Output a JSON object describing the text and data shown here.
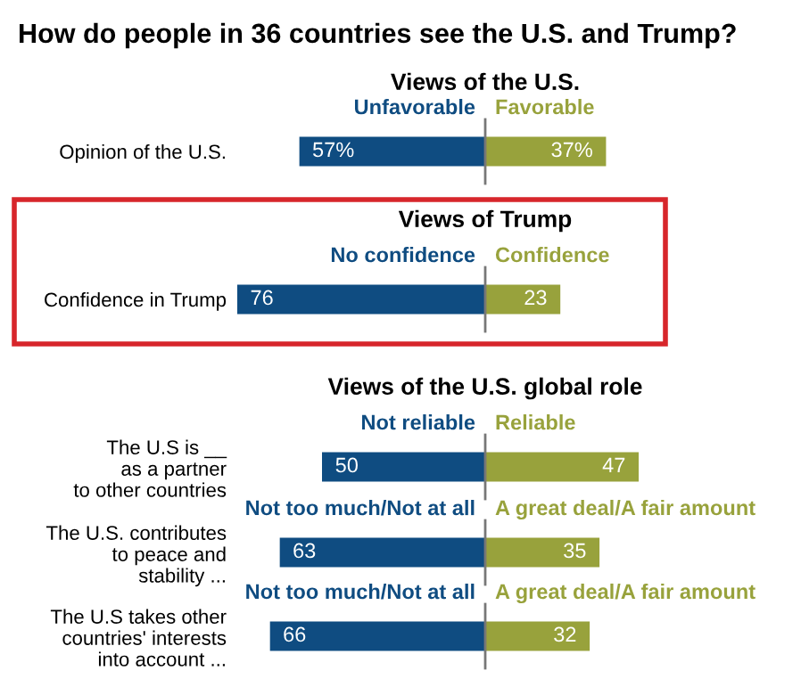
{
  "chart_data": [
    {
      "type": "bar",
      "orientation": "horizontal",
      "stacked": true,
      "title": "How do people in 36 countries see the U.S. and Trump?",
      "subtitle": "Views of the U.S.",
      "categories": [
        "Opinion of the U.S."
      ],
      "tick_labels": "y",
      "data_labels": true,
      "series": [
        {
          "name": "Unfavorable",
          "color": "#0f4c81",
          "values": [
            57
          ],
          "value_labels": [
            "57%"
          ]
        },
        {
          "name": "Favorable",
          "color": "#98a23c",
          "values": [
            37
          ],
          "value_labels": [
            "37%"
          ]
        }
      ]
    },
    {
      "type": "bar",
      "orientation": "horizontal",
      "stacked": true,
      "title": "Views of Trump",
      "categories": [
        "Confidence in Trump"
      ],
      "tick_labels": "y",
      "data_labels": true,
      "series": [
        {
          "name": "No confidence",
          "color": "#0f4c81",
          "values": [
            76
          ]
        },
        {
          "name": "Confidence",
          "color": "#98a23c",
          "values": [
            23
          ]
        }
      ]
    },
    {
      "type": "bar",
      "orientation": "horizontal",
      "stacked": true,
      "title": "Views of the U.S. global role",
      "categories": [
        "The U.S is __\nas a partner\nto other countries"
      ],
      "tick_labels": "y",
      "data_labels": true,
      "series": [
        {
          "name": "Not reliable",
          "color": "#0f4c81",
          "values": [
            50
          ]
        },
        {
          "name": "Reliable",
          "color": "#98a23c",
          "values": [
            47
          ]
        }
      ]
    },
    {
      "type": "bar",
      "orientation": "horizontal",
      "stacked": true,
      "categories": [
        "The U.S. contributes\nto peace and\nstability ..."
      ],
      "tick_labels": "y",
      "data_labels": true,
      "series": [
        {
          "name": "Not too much/Not at all",
          "color": "#0f4c81",
          "values": [
            63
          ]
        },
        {
          "name": "A great deal/A fair amount",
          "color": "#98a23c",
          "values": [
            35
          ]
        }
      ]
    },
    {
      "type": "bar",
      "orientation": "horizontal",
      "stacked": true,
      "categories": [
        "The U.S takes other\ncountries' interests\ninto account ..."
      ],
      "tick_labels": "y",
      "data_labels": true,
      "series": [
        {
          "name": "Not too much/Not at all",
          "color": "#0f4c81",
          "values": [
            66
          ]
        },
        {
          "name": "A great deal/A fair amount",
          "color": "#98a23c",
          "values": [
            32
          ]
        }
      ]
    }
  ]
}
